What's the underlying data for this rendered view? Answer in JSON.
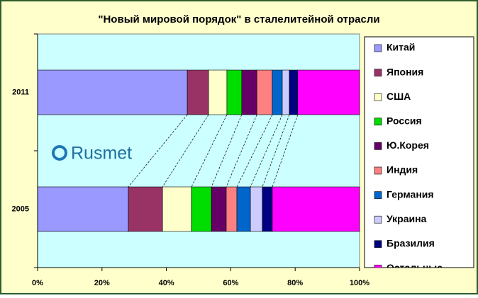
{
  "chart_data": {
    "type": "stacked-bar-horizontal",
    "title": "\"Новый мировой порядок\" в сталелитейной отрасли",
    "watermark": "Rusmet",
    "categories": [
      "2011",
      "2005"
    ],
    "series": [
      {
        "name": "Китай",
        "color": "#9999ff",
        "values": [
          46.5,
          28.2
        ]
      },
      {
        "name": "Япония",
        "color": "#993366",
        "values": [
          6.6,
          10.6
        ]
      },
      {
        "name": "США",
        "color": "#ffffcc",
        "values": [
          5.7,
          9.0
        ]
      },
      {
        "name": "Россия",
        "color": "#00dd00",
        "values": [
          4.6,
          6.2
        ]
      },
      {
        "name": "Ю.Корея",
        "color": "#660066",
        "values": [
          4.7,
          4.6
        ]
      },
      {
        "name": "Индия",
        "color": "#ff8080",
        "values": [
          4.8,
          3.3
        ]
      },
      {
        "name": "Германия",
        "color": "#0066cc",
        "values": [
          3.1,
          4.2
        ]
      },
      {
        "name": "Украина",
        "color": "#ccccff",
        "values": [
          2.2,
          3.7
        ]
      },
      {
        "name": "Бразилия",
        "color": "#000080",
        "values": [
          2.6,
          3.1
        ]
      },
      {
        "name": "Остальные",
        "color": "#ff00ff",
        "values": [
          19.2,
          27.1
        ]
      }
    ],
    "xlim": [
      0,
      100
    ],
    "xticks": [
      {
        "value": 0,
        "label": "0%"
      },
      {
        "value": 20,
        "label": "20%"
      },
      {
        "value": 40,
        "label": "40%"
      },
      {
        "value": 60,
        "label": "60%"
      },
      {
        "value": 80,
        "label": "80%"
      },
      {
        "value": 100,
        "label": "100%"
      }
    ],
    "legend": "right",
    "connectors": true
  }
}
